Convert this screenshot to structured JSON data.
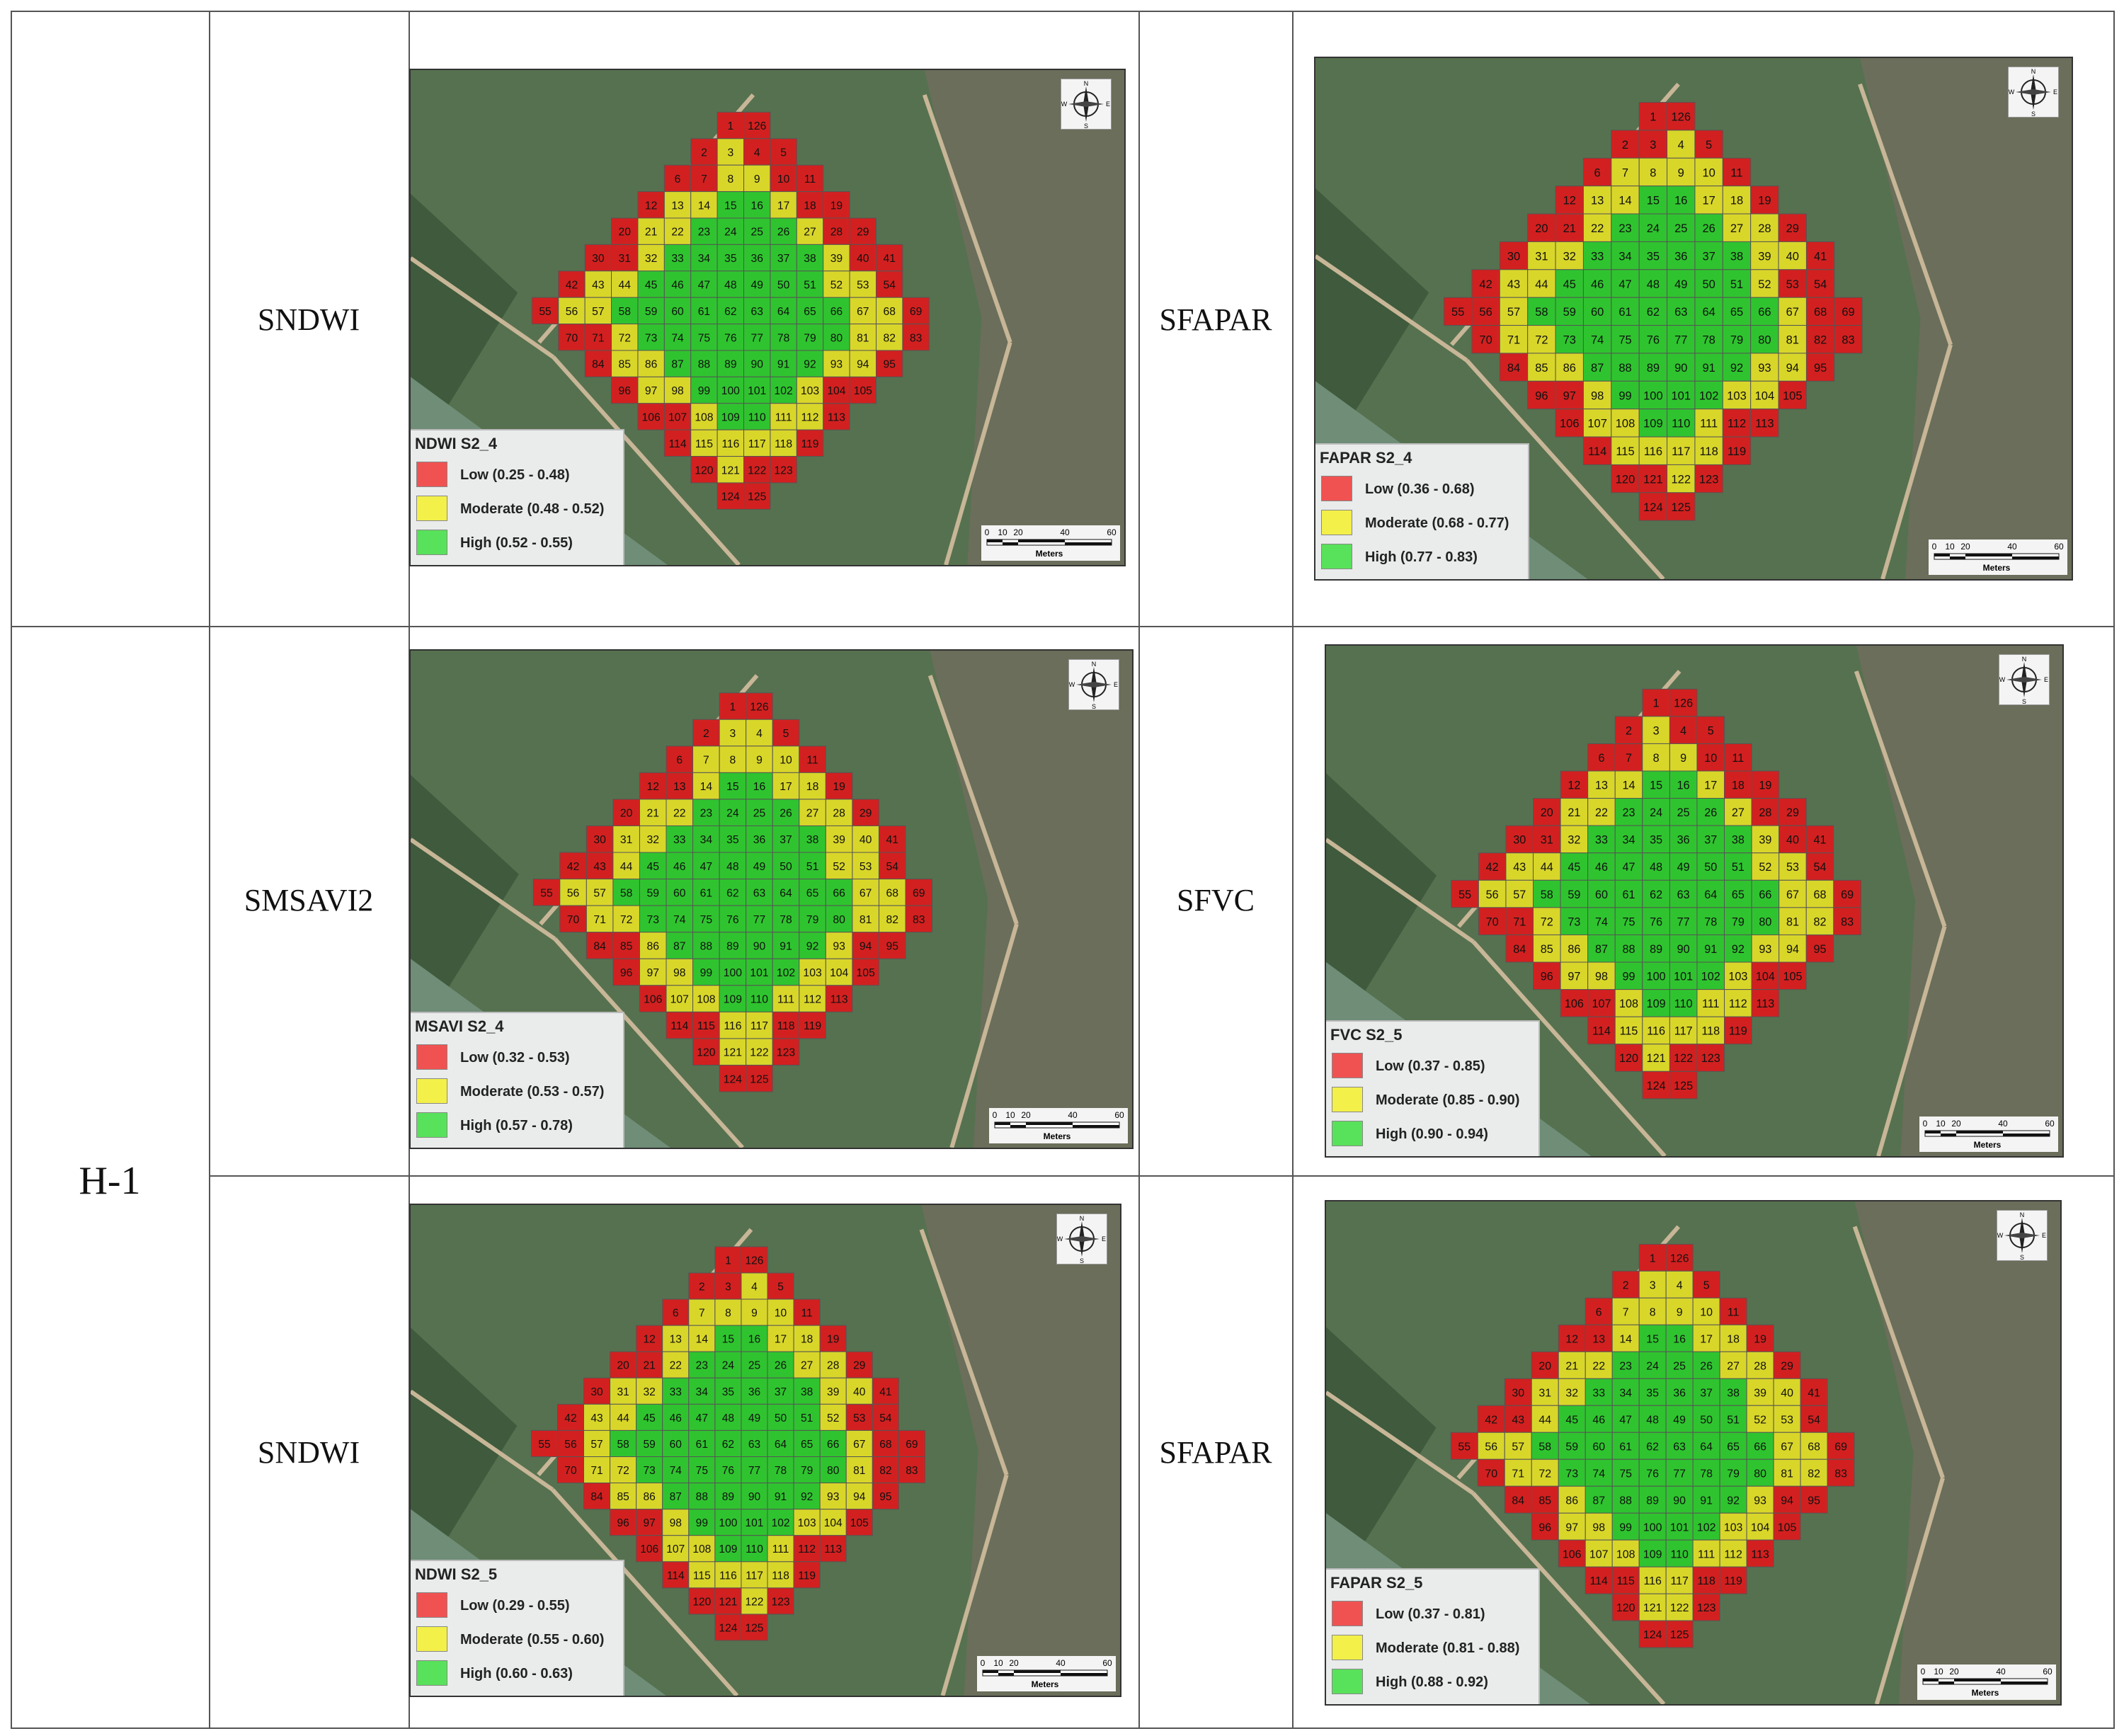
{
  "row_header": "H-1",
  "index_labels": [
    "SNDWI",
    "SFAPAR",
    "SMSAVI2",
    "SFVC",
    "SNDWI",
    "SFAPAR"
  ],
  "legend_colors": {
    "low": "#f05252",
    "moderate": "#f3f04a",
    "high": "#58e15a"
  },
  "maps": [
    {
      "title": "NDWI S2_4",
      "legend": [
        "Low (0.25 - 0.48)",
        "Moderate (0.48 - 0.52)",
        "High (0.52 - 0.55)"
      ]
    },
    {
      "title": "FAPAR S2_4",
      "legend": [
        "Low (0.36 - 0.68)",
        "Moderate (0.68 - 0.77)",
        "High (0.77 - 0.83)"
      ]
    },
    {
      "title": "MSAVI S2_4",
      "legend": [
        "Low (0.32 - 0.53)",
        "Moderate (0.53 - 0.57)",
        "High (0.57 - 0.78)"
      ]
    },
    {
      "title": "FVC S2_5",
      "legend": [
        "Low (0.37 - 0.85)",
        "Moderate (0.85 - 0.90)",
        "High (0.90 - 0.94)"
      ]
    },
    {
      "title": "NDWI S2_5",
      "legend": [
        "Low (0.29 - 0.55)",
        "Moderate (0.55 - 0.60)",
        "High (0.60 - 0.63)"
      ]
    },
    {
      "title": "FAPAR S2_5",
      "legend": [
        "Low (0.37 - 0.81)",
        "Moderate (0.81 - 0.88)",
        "High (0.88 - 0.92)"
      ]
    }
  ],
  "scale_bar": {
    "ticks": [
      "0",
      "10",
      "20",
      "40",
      "60"
    ],
    "unit": "Meters"
  },
  "compass_letters": [
    "N",
    "S",
    "E",
    "W"
  ],
  "plot_rows": [
    [
      1,
      126
    ],
    [
      2,
      3,
      4,
      5
    ],
    [
      6,
      7,
      8,
      9,
      10,
      11
    ],
    [
      12,
      13,
      14,
      15,
      16,
      17,
      18,
      19
    ],
    [
      20,
      21,
      22,
      23,
      24,
      25,
      26,
      27,
      28,
      29
    ],
    [
      30,
      31,
      32,
      33,
      34,
      35,
      36,
      37,
      38,
      39,
      40,
      41
    ],
    [
      42,
      43,
      44,
      45,
      46,
      47,
      48,
      49,
      50,
      51,
      52,
      53,
      54
    ],
    [
      55,
      56,
      57,
      58,
      59,
      60,
      61,
      62,
      63,
      64,
      65,
      66,
      67,
      68,
      69
    ],
    [
      70,
      71,
      72,
      73,
      74,
      75,
      76,
      77,
      78,
      79,
      80,
      81,
      82,
      83
    ],
    [
      84,
      85,
      86,
      87,
      88,
      89,
      90,
      91,
      92,
      93,
      94,
      95
    ],
    [
      96,
      97,
      98,
      99,
      100,
      101,
      102,
      103,
      104,
      105
    ],
    [
      106,
      107,
      108,
      109,
      110,
      111,
      112,
      113
    ],
    [
      114,
      115,
      116,
      117,
      118,
      119
    ],
    [
      120,
      121,
      122,
      123
    ],
    [
      124,
      125
    ]
  ]
}
